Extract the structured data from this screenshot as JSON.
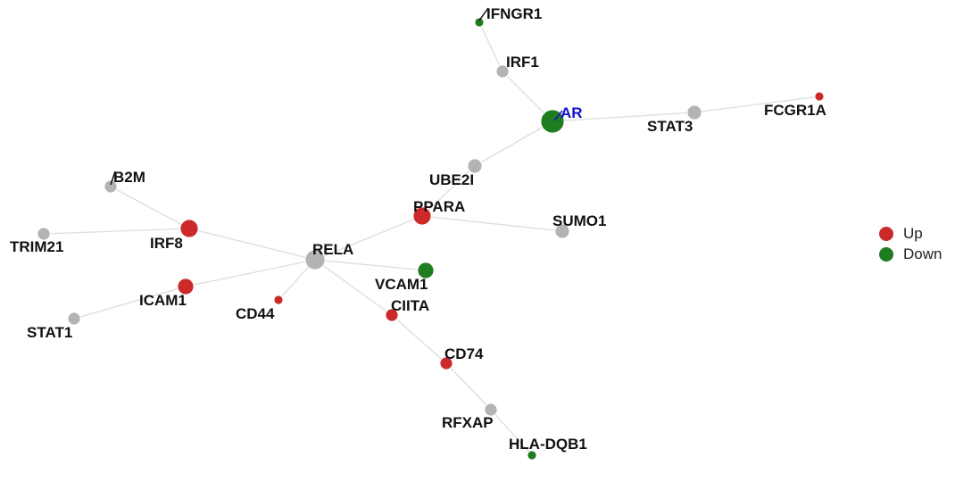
{
  "legend": {
    "items": [
      {
        "label": "Up",
        "color": "#cc2a2a"
      },
      {
        "label": "Down",
        "color": "#1e7d1e"
      }
    ]
  },
  "colors": {
    "up": "#cc2a2a",
    "down": "#1e7d1e",
    "neutral": "#b3b3b3",
    "edge": "#dddddd",
    "hub_label": "#1010cc"
  },
  "network": {
    "nodes": [
      {
        "id": "IFNGR1",
        "label": "IFNGR1",
        "status": "down"
      },
      {
        "id": "IRF1",
        "label": "IRF1",
        "status": "neutral"
      },
      {
        "id": "AR",
        "label": "AR",
        "status": "down",
        "hub": true
      },
      {
        "id": "STAT3",
        "label": "STAT3",
        "status": "neutral"
      },
      {
        "id": "FCGR1A",
        "label": "FCGR1A",
        "status": "up"
      },
      {
        "id": "UBE2I",
        "label": "UBE2I",
        "status": "neutral"
      },
      {
        "id": "PPARA",
        "label": "PPARA",
        "status": "up"
      },
      {
        "id": "SUMO1",
        "label": "SUMO1",
        "status": "neutral"
      },
      {
        "id": "B2M",
        "label": "B2M",
        "status": "neutral"
      },
      {
        "id": "IRF8",
        "label": "IRF8",
        "status": "up"
      },
      {
        "id": "TRIM21",
        "label": "TRIM21",
        "status": "neutral"
      },
      {
        "id": "RELA",
        "label": "RELA",
        "status": "neutral"
      },
      {
        "id": "VCAM1",
        "label": "VCAM1",
        "status": "down"
      },
      {
        "id": "ICAM1",
        "label": "ICAM1",
        "status": "up"
      },
      {
        "id": "CD44",
        "label": "CD44",
        "status": "up"
      },
      {
        "id": "STAT1",
        "label": "STAT1",
        "status": "neutral"
      },
      {
        "id": "CIITA",
        "label": "CIITA",
        "status": "up"
      },
      {
        "id": "CD74",
        "label": "CD74",
        "status": "up"
      },
      {
        "id": "RFXAP",
        "label": "RFXAP",
        "status": "neutral"
      },
      {
        "id": "HLA-DQB1",
        "label": "HLA-DQB1",
        "status": "down"
      }
    ],
    "edges": [
      [
        "IFNGR1",
        "IRF1"
      ],
      [
        "IRF1",
        "AR"
      ],
      [
        "AR",
        "STAT3"
      ],
      [
        "STAT3",
        "FCGR1A"
      ],
      [
        "AR",
        "UBE2I"
      ],
      [
        "UBE2I",
        "PPARA"
      ],
      [
        "PPARA",
        "SUMO1"
      ],
      [
        "PPARA",
        "RELA"
      ],
      [
        "B2M",
        "IRF8"
      ],
      [
        "TRIM21",
        "IRF8"
      ],
      [
        "IRF8",
        "RELA"
      ],
      [
        "RELA",
        "VCAM1"
      ],
      [
        "RELA",
        "ICAM1"
      ],
      [
        "RELA",
        "CD44"
      ],
      [
        "ICAM1",
        "STAT1"
      ],
      [
        "RELA",
        "CIITA"
      ],
      [
        "CIITA",
        "CD74"
      ],
      [
        "CD74",
        "RFXAP"
      ],
      [
        "RFXAP",
        "HLA-DQB1"
      ]
    ]
  }
}
